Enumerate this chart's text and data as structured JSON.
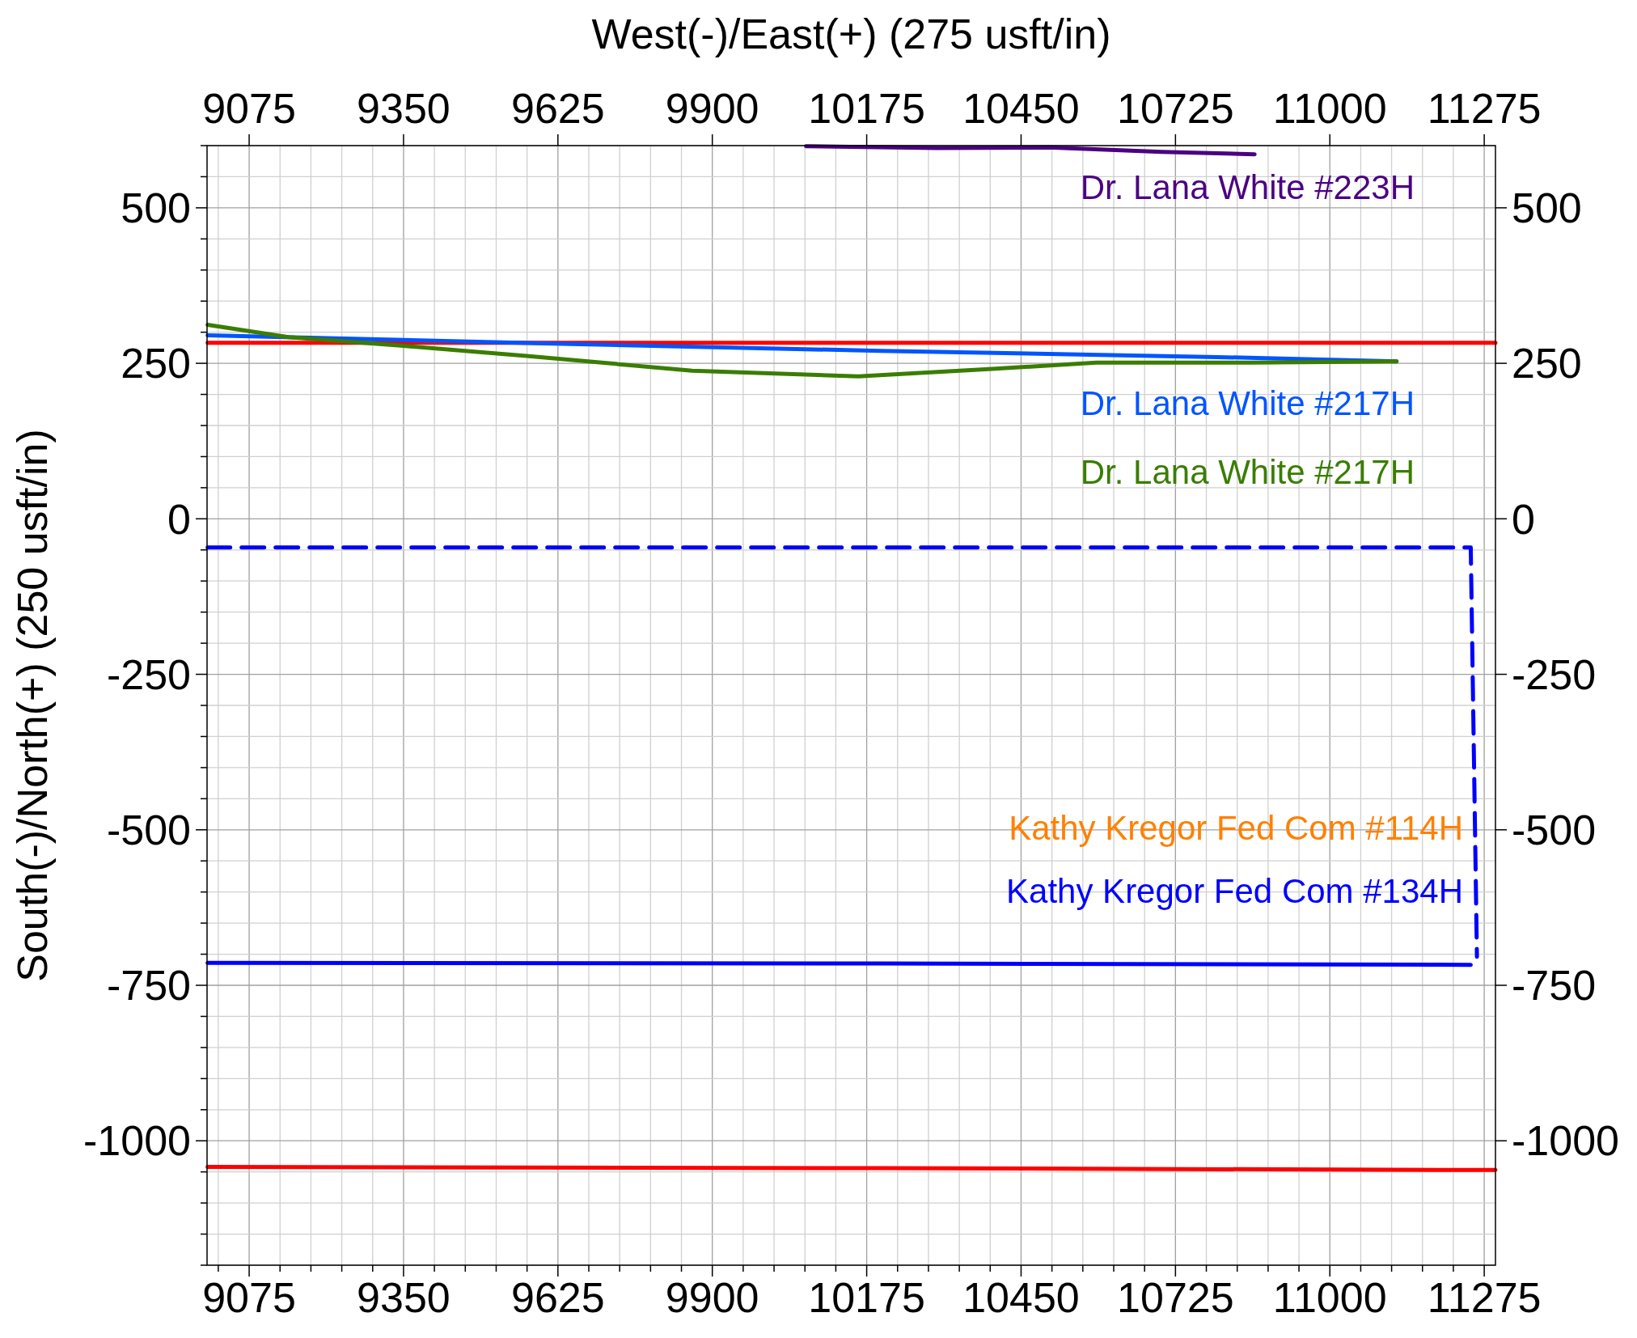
{
  "chart_data": {
    "type": "line",
    "ylabel": "South(-)/North(+) (250 usft/in)",
    "x2label": "West(-)/East(+) (275 usft/in)",
    "xlim": [
      9000,
      11295
    ],
    "ylim": [
      -1200,
      600
    ],
    "x2lim": [
      9000,
      11295
    ],
    "y2lim": [
      -1200,
      600
    ],
    "xticks": [
      {
        "value": 9020,
        "label": null
      },
      9075,
      {
        "value": 9130,
        "label": null
      },
      {
        "value": 9185,
        "label": null
      },
      {
        "value": 9240,
        "label": null
      },
      {
        "value": 9295,
        "label": null
      },
      9350,
      {
        "value": 9405,
        "label": null
      },
      {
        "value": 9460,
        "label": null
      },
      {
        "value": 9515,
        "label": null
      },
      {
        "value": 9570,
        "label": null
      },
      9625,
      {
        "value": 9680,
        "label": null
      },
      {
        "value": 9735,
        "label": null
      },
      {
        "value": 9790,
        "label": null
      },
      {
        "value": 9845,
        "label": null
      },
      9900,
      {
        "value": 9955,
        "label": null
      },
      {
        "value": 10010,
        "label": null
      },
      {
        "value": 10065,
        "label": null
      },
      {
        "value": 10120,
        "label": null
      },
      10175,
      {
        "value": 10230,
        "label": null
      },
      {
        "value": 10285,
        "label": null
      },
      {
        "value": 10340,
        "label": null
      },
      {
        "value": 10395,
        "label": null
      },
      10450,
      {
        "value": 10505,
        "label": null
      },
      {
        "value": 10560,
        "label": null
      },
      {
        "value": 10615,
        "label": null
      },
      {
        "value": 10670,
        "label": null
      },
      10725,
      {
        "value": 10780,
        "label": null
      },
      {
        "value": 10835,
        "label": null
      },
      {
        "value": 10890,
        "label": null
      },
      {
        "value": 10945,
        "label": null
      },
      11000,
      {
        "value": 11055,
        "label": null
      },
      {
        "value": 11110,
        "label": null
      },
      {
        "value": 11165,
        "label": null
      },
      {
        "value": 11220,
        "label": null
      },
      11275
    ],
    "x2ticks": [
      9075,
      9350,
      9625,
      9900,
      10175,
      10450,
      10725,
      11000,
      11275
    ],
    "yticks": [
      {
        "value": -1200,
        "label": null
      },
      {
        "value": -1150,
        "label": null
      },
      {
        "value": -1100,
        "label": null
      },
      {
        "value": -1050,
        "label": null
      },
      -1000,
      {
        "value": -950,
        "label": null
      },
      {
        "value": -900,
        "label": null
      },
      {
        "value": -850,
        "label": null
      },
      {
        "value": -800,
        "label": null
      },
      -750,
      {
        "value": -700,
        "label": null
      },
      {
        "value": -650,
        "label": null
      },
      {
        "value": -600,
        "label": null
      },
      {
        "value": -550,
        "label": null
      },
      -500,
      {
        "value": -450,
        "label": null
      },
      {
        "value": -400,
        "label": null
      },
      {
        "value": -350,
        "label": null
      },
      {
        "value": -300,
        "label": null
      },
      -250,
      {
        "value": -200,
        "label": null
      },
      {
        "value": -150,
        "label": null
      },
      {
        "value": -100,
        "label": null
      },
      {
        "value": -50,
        "label": null
      },
      0,
      {
        "value": 50,
        "label": null
      },
      {
        "value": 100,
        "label": null
      },
      {
        "value": 150,
        "label": null
      },
      {
        "value": 200,
        "label": null
      },
      250,
      {
        "value": 300,
        "label": null
      },
      {
        "value": 350,
        "label": null
      },
      {
        "value": 400,
        "label": null
      },
      {
        "value": 450,
        "label": null
      },
      500,
      {
        "value": 550,
        "label": null
      },
      {
        "value": 600,
        "label": null
      }
    ],
    "y2ticks": [
      -1000,
      -750,
      -500,
      -250,
      0,
      250,
      500
    ],
    "grid": true,
    "legend": "right",
    "line_style": "solid",
    "marker": "none",
    "series": [
      {
        "name": "Dr. Lana White #223H",
        "color": "#4b0082",
        "x": [
          10067,
          10300,
          10500,
          10700,
          10866
        ],
        "values": [
          599,
          596,
          597,
          590,
          586
        ]
      },
      {
        "color": "#ff0000",
        "x": [
          9001,
          11295
        ],
        "values": [
          283,
          283
        ]
      },
      {
        "name": "Dr. Lana White #217H",
        "color": "#0055ff",
        "x": [
          9001,
          9600,
          10200,
          10800,
          11119
        ],
        "values": [
          295,
          282,
          270,
          260,
          253
        ]
      },
      {
        "name": "Dr. Lana White #217H",
        "color": "#3a7d00",
        "x": [
          9001,
          9145,
          9350,
          9569,
          9864,
          10160,
          10399,
          10584,
          10860,
          11119
        ],
        "values": [
          312,
          292,
          278,
          262,
          238,
          229,
          241,
          251,
          251,
          253
        ]
      },
      {
        "name": "Kathy Kregor Fed Com #114H",
        "color": "#ff8000"
      },
      {
        "name": "Kathy Kregor Fed Com #134H",
        "color": "#0000ff",
        "x": [
          9001,
          10200,
          11251
        ],
        "values": [
          -714,
          -715,
          -717
        ]
      },
      {
        "color": "#0000ff",
        "line_style": "dashed",
        "x": [
          9001,
          11251,
          11262
        ],
        "values": [
          -46,
          -46,
          -704
        ]
      },
      {
        "color": "#ff0000",
        "x": [
          9001,
          10200,
          11295
        ],
        "values": [
          -1042,
          -1044,
          -1047
        ]
      }
    ]
  }
}
